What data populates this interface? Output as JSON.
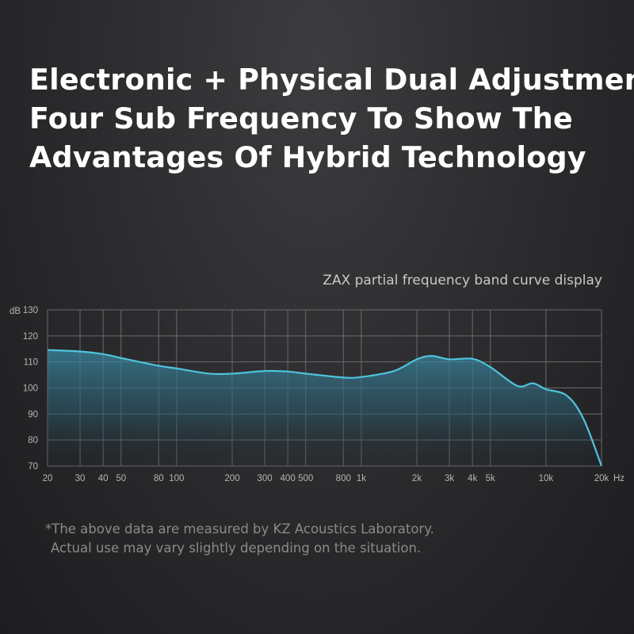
{
  "header": {
    "lines": [
      "Electronic + Physical Dual Adjustment",
      "Four Sub Frequency To Show The",
      "Advantages Of Hybrid Technology"
    ]
  },
  "chart_data": {
    "type": "area",
    "title": "ZAX partial frequency band curve display",
    "xlabel": "Hz",
    "ylabel": "dB",
    "x_scale": "log",
    "xlim": [
      20,
      20000
    ],
    "ylim": [
      70,
      130
    ],
    "grid": true,
    "x_ticks": [
      20,
      30,
      40,
      50,
      80,
      100,
      200,
      300,
      400,
      500,
      800,
      1000,
      2000,
      3000,
      4000,
      5000,
      10000,
      20000
    ],
    "x_tick_labels": [
      "20",
      "30",
      "40",
      "50",
      "80",
      "100",
      "200",
      "300",
      "400",
      "500",
      "800",
      "1k",
      "2k",
      "3k",
      "4k",
      "5k",
      "10k",
      "20k"
    ],
    "y_ticks": [
      70,
      80,
      90,
      100,
      110,
      120,
      130
    ],
    "y_tick_labels": [
      "70",
      "80",
      "90",
      "100",
      "110",
      "120",
      "130"
    ],
    "line_color": "#4fc3dc",
    "fill_color": "#2f6a80",
    "x": [
      20,
      30,
      40,
      50,
      80,
      100,
      150,
      200,
      300,
      400,
      500,
      800,
      1000,
      1500,
      2000,
      2400,
      3000,
      4000,
      5000,
      7000,
      8500,
      10000,
      13000,
      16000,
      20000
    ],
    "y": [
      114.6,
      114,
      113,
      111.5,
      108.5,
      107.5,
      105.5,
      105.5,
      106.5,
      106.3,
      105.5,
      104,
      104.2,
      106.5,
      111,
      112.3,
      111,
      111.2,
      108,
      100.8,
      101.8,
      99.5,
      97,
      88,
      70
    ]
  },
  "footnote": {
    "line1": "*The above data are measured by KZ Acoustics Laboratory.",
    "line2": "Actual use may vary slightly depending on the situation."
  }
}
